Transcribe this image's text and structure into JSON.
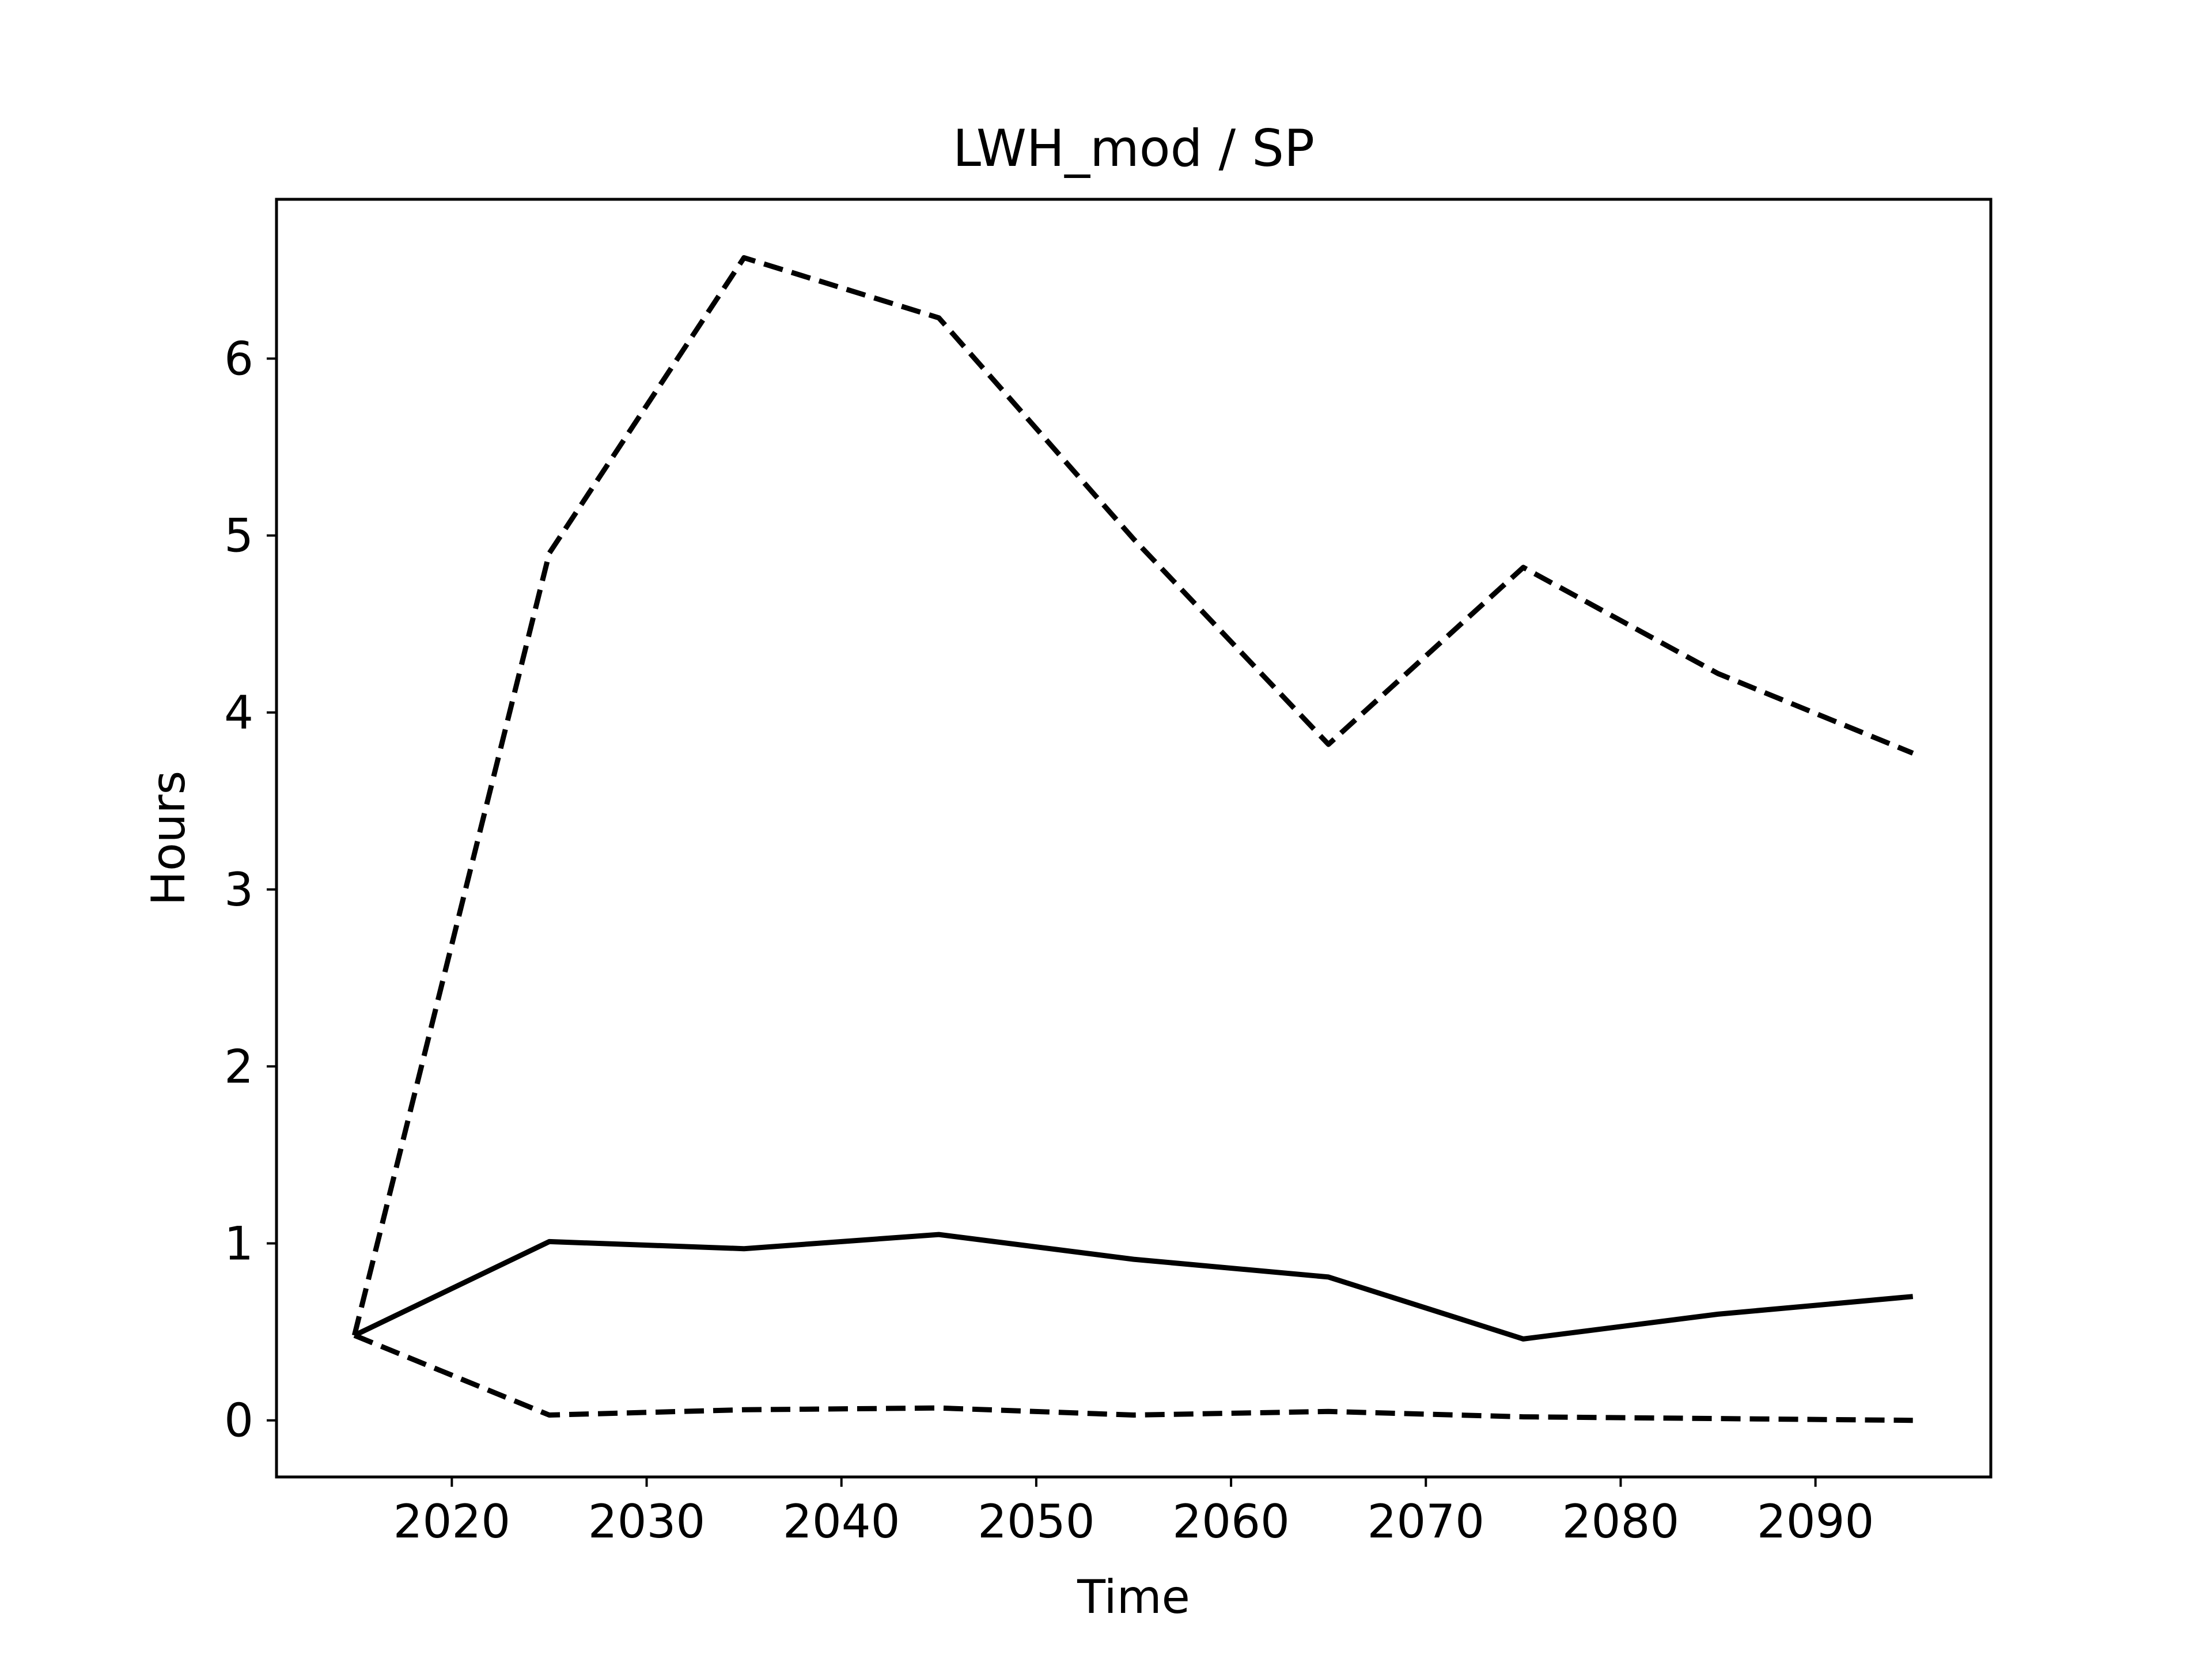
{
  "chart_data": {
    "type": "line",
    "title": "LWH_mod / SP",
    "xlabel": "Time",
    "ylabel": "Hours",
    "xlim": [
      2011,
      2099
    ],
    "ylim": [
      -0.32,
      6.9
    ],
    "xticks": [
      2020,
      2030,
      2040,
      2050,
      2060,
      2070,
      2080,
      2090
    ],
    "yticks": [
      0,
      1,
      2,
      3,
      4,
      5,
      6
    ],
    "grid": false,
    "legend": "none",
    "x": [
      2015,
      2025,
      2035,
      2045,
      2055,
      2065,
      2075,
      2085,
      2095
    ],
    "series": [
      {
        "style": "dashed",
        "color": "#000000",
        "values": [
          0.48,
          4.9,
          6.57,
          6.23,
          4.98,
          3.82,
          4.82,
          4.22,
          3.77
        ]
      },
      {
        "style": "solid",
        "color": "#000000",
        "values": [
          0.48,
          1.01,
          0.97,
          1.05,
          0.91,
          0.81,
          0.46,
          0.6,
          0.7
        ]
      },
      {
        "style": "dashed",
        "color": "#000000",
        "values": [
          0.48,
          0.03,
          0.06,
          0.07,
          0.03,
          0.05,
          0.02,
          0.01,
          0.0
        ]
      }
    ]
  }
}
